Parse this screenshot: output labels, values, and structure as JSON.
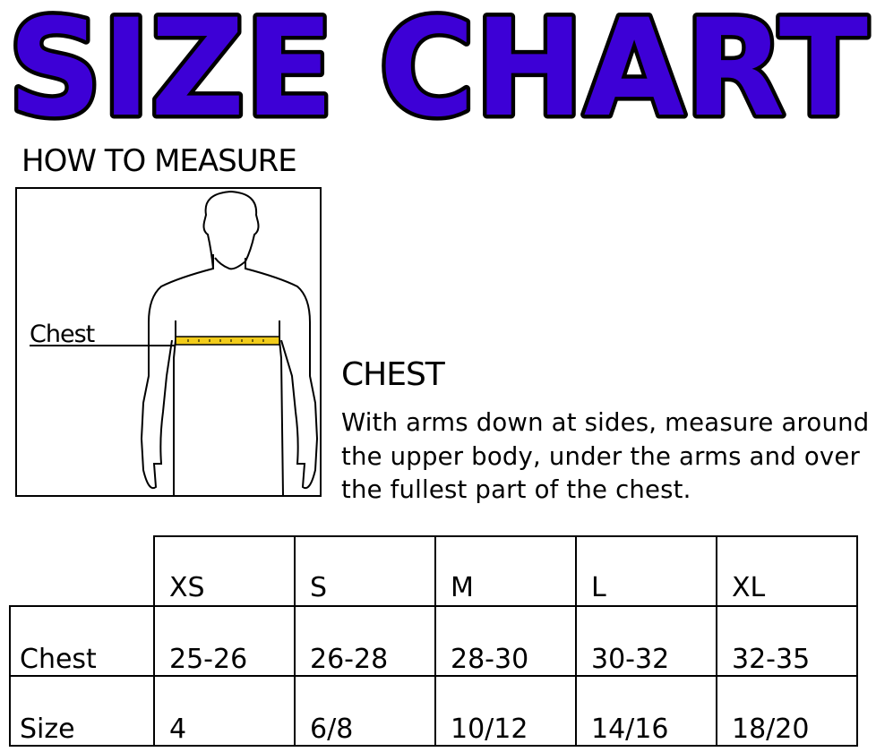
{
  "title": "SIZE CHART",
  "title_colors": {
    "fill": "#3d00d6",
    "outline": "#000000"
  },
  "how_to_measure": {
    "heading": "HOW TO MEASURE",
    "figure_label": "Chest",
    "tape_color": "#f2cc1a"
  },
  "chest": {
    "heading": "CHEST",
    "description": "With arms down at sides, measure around the upper body, under the arms and over the fullest part of the chest."
  },
  "table": {
    "headers": [
      "XS",
      "S",
      "M",
      "L",
      "XL"
    ],
    "rows": [
      {
        "label": "Chest",
        "values": [
          "25-26",
          "26-28",
          "28-30",
          "30-32",
          "32-35"
        ]
      },
      {
        "label": "Size",
        "values": [
          "4",
          "6/8",
          "10/12",
          "14/16",
          "18/20"
        ]
      }
    ]
  }
}
